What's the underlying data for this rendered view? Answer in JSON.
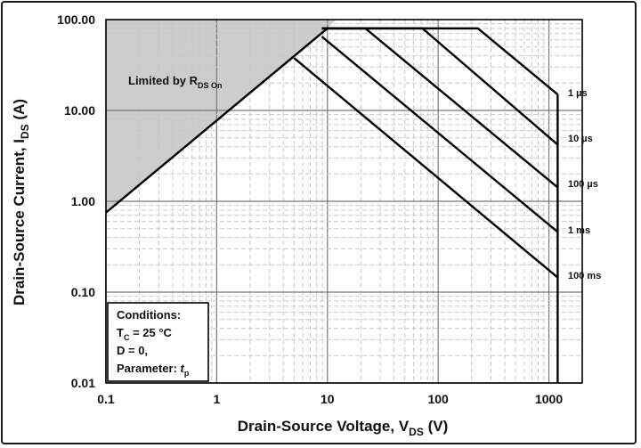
{
  "chart_data": {
    "type": "line",
    "xscale": "log",
    "yscale": "log",
    "xlim": [
      0.1,
      2000
    ],
    "ylim": [
      0.01,
      100
    ],
    "grid": true,
    "x_ticks": [
      "0.1",
      "1",
      "10",
      "100",
      "1000"
    ],
    "y_ticks": [
      "0.01",
      "0.10",
      "1.00",
      "10.00",
      "100.00"
    ],
    "xlabel": {
      "main": "Drain-Source Voltage, V",
      "sub": "DS",
      "unit": " (V)"
    },
    "ylabel": {
      "main": "Drain-Source Current, I",
      "sub": "DS",
      "unit": " (A)"
    },
    "limit_region": {
      "label_main": "Limited by R",
      "label_sub": "DS On",
      "points": [
        [
          0.1,
          0.75
        ],
        [
          5,
          37.7
        ],
        [
          10,
          80
        ]
      ]
    },
    "series": [
      {
        "name": "1 µs",
        "points": [
          [
            0.1,
            0.75
          ],
          [
            10,
            80
          ],
          [
            228,
            80
          ],
          [
            1200,
            15
          ]
        ]
      },
      {
        "name": "10 µs",
        "points": [
          [
            8.9,
            80
          ],
          [
            72,
            80
          ],
          [
            1200,
            4.2
          ]
        ]
      },
      {
        "name": "100 µs",
        "points": [
          [
            8.9,
            80
          ],
          [
            22,
            80
          ],
          [
            1200,
            1.42
          ]
        ]
      },
      {
        "name": "1 ms",
        "points": [
          [
            8.9,
            65
          ],
          [
            1200,
            0.46
          ]
        ]
      },
      {
        "name": "100 ms",
        "points": [
          [
            5,
            37.7
          ],
          [
            1200,
            0.145
          ]
        ]
      }
    ],
    "voltage_limit": {
      "x": 1200,
      "y_range": [
        0.01,
        15
      ]
    },
    "conditions": {
      "title": "Conditions:",
      "tc_main": "T",
      "tc_sub": "C",
      "tc_value": " = 25 °C",
      "d": "D = 0,",
      "param_main": "Parameter: ",
      "param_t": "t",
      "param_sub": "p"
    }
  }
}
